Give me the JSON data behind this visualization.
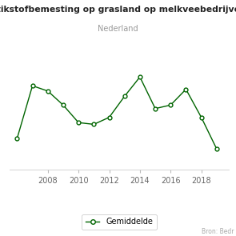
{
  "title": "Stikstofbemesting op grasland op melkveebedrijven",
  "subtitle": "Nederland",
  "source": "Bron: Bedr",
  "legend_label": "Gemiddelde",
  "years": [
    2006,
    2007,
    2008,
    2009,
    2010,
    2011,
    2012,
    2013,
    2014,
    2015,
    2016,
    2017,
    2018,
    2019
  ],
  "values": [
    48,
    78,
    75,
    67,
    57,
    56,
    60,
    72,
    83,
    65,
    67,
    76,
    60,
    42
  ],
  "xlim": [
    2005.5,
    2019.8
  ],
  "ylim": [
    30,
    100
  ],
  "xticks": [
    2008,
    2010,
    2012,
    2014,
    2016,
    2018
  ],
  "line_color": "#006400",
  "marker_face": "#ffffff",
  "bg_color": "#ffffff",
  "grid_color": "#e8e8e8",
  "title_fontsize": 7.8,
  "subtitle_fontsize": 7,
  "tick_fontsize": 7,
  "source_fontsize": 5.5
}
